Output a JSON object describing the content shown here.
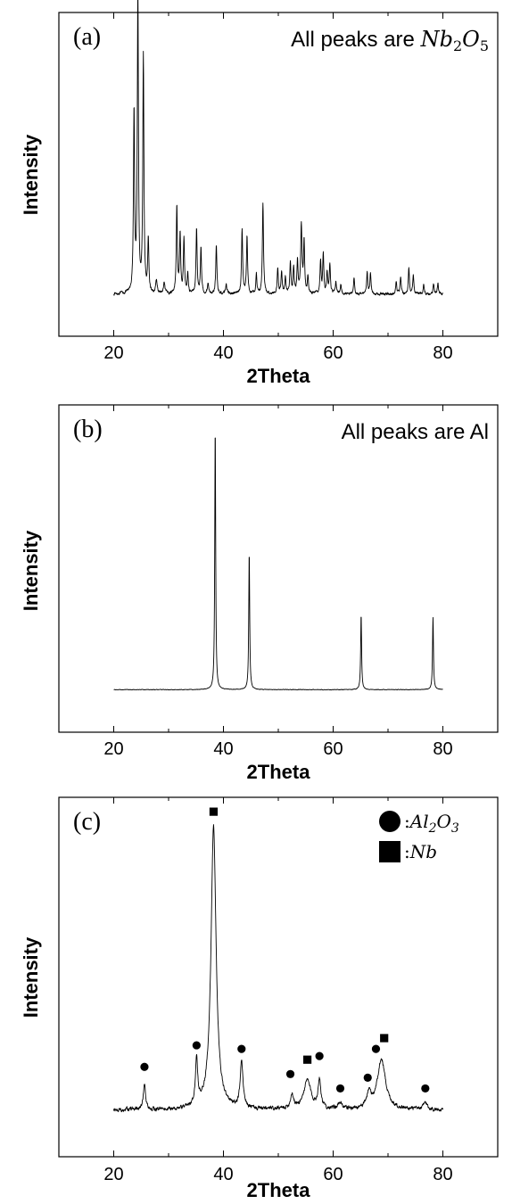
{
  "chart_data": [
    {
      "type": "line",
      "panel_label": "(a)",
      "annotation": {
        "prefix": "All peaks are ",
        "formula": [
          {
            "t": "Nb"
          },
          {
            "sub": "2"
          },
          {
            "t": "O"
          },
          {
            "sub": "5"
          }
        ]
      },
      "xlabel": "2Theta",
      "ylabel": "Intensity",
      "xlim": [
        10,
        90
      ],
      "xticks": [
        20,
        40,
        60,
        80
      ],
      "ylim": [
        0,
        1
      ],
      "x_range": [
        20,
        80
      ],
      "baseline": 0.13,
      "noise": 0.004,
      "peaks": [
        [
          23.7,
          0.56,
          0.12
        ],
        [
          24.4,
          0.93,
          0.12
        ],
        [
          25.4,
          0.73,
          0.12
        ],
        [
          26.3,
          0.16,
          0.12
        ],
        [
          27.8,
          0.04,
          0.15
        ],
        [
          29.2,
          0.03,
          0.15
        ],
        [
          31.5,
          0.27,
          0.12
        ],
        [
          32.1,
          0.18,
          0.12
        ],
        [
          32.8,
          0.17,
          0.12
        ],
        [
          33.5,
          0.06,
          0.12
        ],
        [
          35.1,
          0.2,
          0.12
        ],
        [
          35.9,
          0.14,
          0.12
        ],
        [
          37.2,
          0.03,
          0.15
        ],
        [
          38.7,
          0.15,
          0.12
        ],
        [
          40.5,
          0.03,
          0.15
        ],
        [
          43.4,
          0.2,
          0.12
        ],
        [
          44.3,
          0.18,
          0.12
        ],
        [
          46.0,
          0.06,
          0.12
        ],
        [
          47.2,
          0.28,
          0.12
        ],
        [
          49.9,
          0.08,
          0.12
        ],
        [
          50.6,
          0.07,
          0.12
        ],
        [
          51.3,
          0.05,
          0.12
        ],
        [
          52.2,
          0.1,
          0.12
        ],
        [
          52.8,
          0.08,
          0.12
        ],
        [
          53.5,
          0.1,
          0.12
        ],
        [
          54.2,
          0.21,
          0.14
        ],
        [
          54.7,
          0.16,
          0.12
        ],
        [
          55.4,
          0.05,
          0.12
        ],
        [
          57.7,
          0.1,
          0.12
        ],
        [
          58.2,
          0.12,
          0.12
        ],
        [
          58.9,
          0.07,
          0.12
        ],
        [
          59.4,
          0.09,
          0.12
        ],
        [
          60.5,
          0.04,
          0.12
        ],
        [
          61.4,
          0.03,
          0.12
        ],
        [
          63.8,
          0.05,
          0.12
        ],
        [
          66.2,
          0.07,
          0.12
        ],
        [
          66.8,
          0.06,
          0.12
        ],
        [
          71.5,
          0.04,
          0.12
        ],
        [
          72.3,
          0.05,
          0.12
        ],
        [
          73.8,
          0.08,
          0.12
        ],
        [
          74.6,
          0.06,
          0.12
        ],
        [
          76.5,
          0.03,
          0.12
        ],
        [
          78.3,
          0.03,
          0.12
        ],
        [
          79.1,
          0.03,
          0.12
        ]
      ]
    },
    {
      "type": "line",
      "panel_label": "(b)",
      "annotation": {
        "prefix": "All peaks are Al",
        "formula": []
      },
      "xlabel": "2Theta",
      "ylabel": "Intensity",
      "xlim": [
        10,
        90
      ],
      "xticks": [
        20,
        40,
        60,
        80
      ],
      "ylim": [
        0,
        1
      ],
      "x_range": [
        20,
        80
      ],
      "baseline": 0.13,
      "noise": 0.0008,
      "peaks": [
        [
          38.5,
          0.8,
          0.1
        ],
        [
          44.7,
          0.42,
          0.1
        ],
        [
          65.1,
          0.23,
          0.1
        ],
        [
          78.2,
          0.22,
          0.1
        ]
      ]
    },
    {
      "type": "line",
      "panel_label": "(c)",
      "legend": [
        {
          "marker": "circle",
          "formula": [
            {
              "t": "Al"
            },
            {
              "sub": "2"
            },
            {
              "t": "O"
            },
            {
              "sub": "3"
            }
          ]
        },
        {
          "marker": "square",
          "formula": [
            {
              "t": "Nb"
            }
          ]
        }
      ],
      "xlabel": "2Theta",
      "ylabel": "Intensity",
      "xlim": [
        10,
        90
      ],
      "xticks": [
        20,
        40,
        60,
        80
      ],
      "ylim": [
        0,
        1
      ],
      "x_range": [
        20,
        80
      ],
      "baseline": 0.13,
      "noise": 0.005,
      "peaks": [
        [
          25.6,
          0.07,
          0.25
        ],
        [
          35.1,
          0.13,
          0.25
        ],
        [
          38.2,
          0.79,
          0.55
        ],
        [
          43.3,
          0.13,
          0.3
        ],
        [
          52.5,
          0.04,
          0.35
        ],
        [
          55.3,
          0.08,
          0.8
        ],
        [
          57.5,
          0.08,
          0.3
        ],
        [
          61.3,
          0.02,
          0.4
        ],
        [
          66.5,
          0.04,
          0.45
        ],
        [
          68.8,
          0.14,
          0.9
        ],
        [
          76.8,
          0.02,
          0.4
        ]
      ],
      "markers": [
        {
          "shape": "circle",
          "x": 25.6,
          "y": 0.25
        },
        {
          "shape": "circle",
          "x": 35.1,
          "y": 0.31
        },
        {
          "shape": "square",
          "x": 38.2,
          "y": 0.96
        },
        {
          "shape": "circle",
          "x": 43.3,
          "y": 0.3
        },
        {
          "shape": "circle",
          "x": 52.2,
          "y": 0.23
        },
        {
          "shape": "square",
          "x": 55.3,
          "y": 0.27
        },
        {
          "shape": "circle",
          "x": 57.5,
          "y": 0.28
        },
        {
          "shape": "circle",
          "x": 61.3,
          "y": 0.19
        },
        {
          "shape": "circle",
          "x": 66.3,
          "y": 0.22
        },
        {
          "shape": "circle",
          "x": 67.8,
          "y": 0.3
        },
        {
          "shape": "square",
          "x": 69.3,
          "y": 0.33
        },
        {
          "shape": "circle",
          "x": 76.8,
          "y": 0.19
        }
      ]
    }
  ]
}
